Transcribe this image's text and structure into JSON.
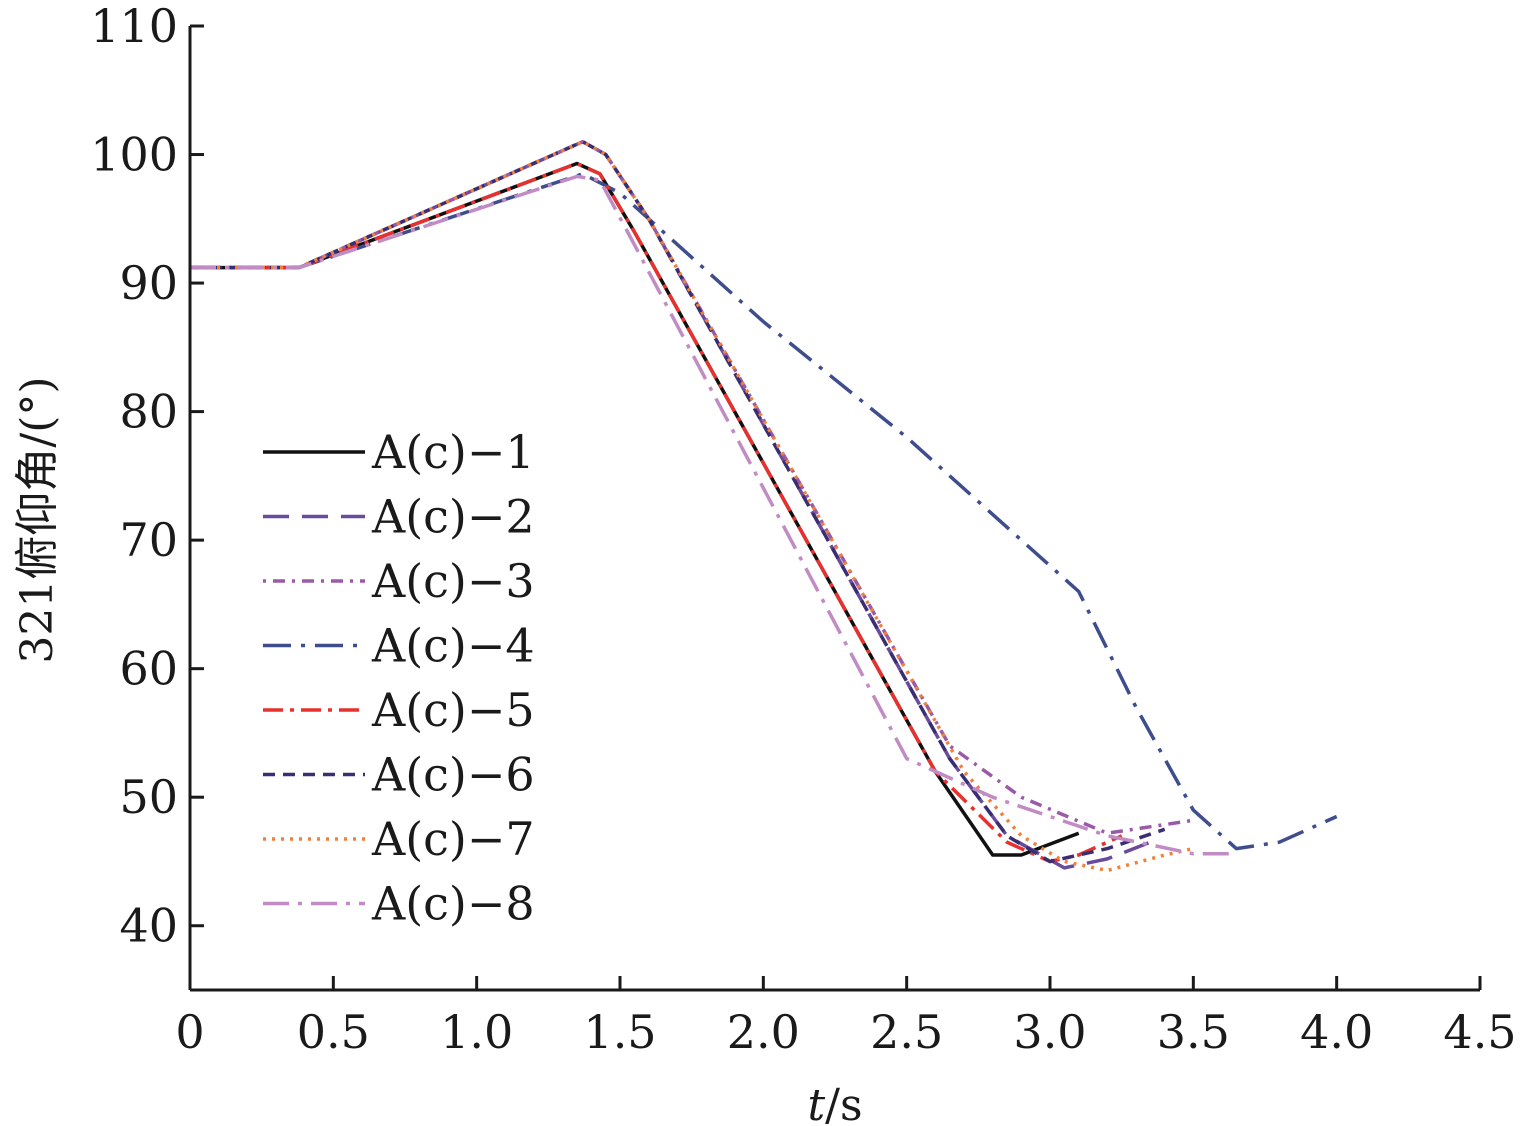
{
  "chart_data": {
    "type": "line",
    "xlabel_italic": "t",
    "xlabel_unit": "/s",
    "ylabel": "321俯仰角/(°)",
    "xlim": [
      0,
      4.5
    ],
    "ylim": [
      35,
      110
    ],
    "xticks": [
      0,
      0.5,
      1.0,
      1.5,
      2.0,
      2.5,
      3.0,
      3.5,
      4.0,
      4.5
    ],
    "xtick_labels": [
      "0",
      "0.5",
      "1.0",
      "1.5",
      "2.0",
      "2.5",
      "3.0",
      "3.5",
      "4.0",
      "4.5"
    ],
    "yticks": [
      40,
      50,
      60,
      70,
      80,
      90,
      100,
      110
    ],
    "ytick_labels": [
      "40",
      "50",
      "60",
      "70",
      "80",
      "90",
      "100",
      "110"
    ],
    "grid": false,
    "legend_position": "left",
    "series": [
      {
        "name": "A(c)−1",
        "color": "#111111",
        "dash": "",
        "x": [
          0,
          0.38,
          1.35,
          1.43,
          1.55,
          2.6,
          2.8,
          2.9,
          3.1
        ],
        "y": [
          91.2,
          91.2,
          99.3,
          98.5,
          94,
          52,
          45.5,
          45.5,
          47.2
        ]
      },
      {
        "name": "A(c)−2",
        "color": "#6a4a9c",
        "dash": "26,13",
        "x": [
          0,
          0.38,
          1.37,
          1.45,
          1.6,
          2.65,
          2.85,
          3.05,
          3.2,
          3.35
        ],
        "y": [
          91.2,
          91.2,
          101,
          100,
          95,
          53,
          47,
          44.5,
          45.2,
          46.5
        ]
      },
      {
        "name": "A(c)−3",
        "color": "#9a5aa8",
        "dash": "3,7,12,7",
        "x": [
          0,
          0.38,
          1.37,
          1.45,
          1.6,
          2.65,
          2.9,
          3.2,
          3.5
        ],
        "y": [
          91.2,
          91.2,
          101,
          100,
          95,
          54,
          50,
          47.2,
          48.2
        ]
      },
      {
        "name": "A(c)−4",
        "color": "#3e4d8e",
        "dash": "28,10,4,10",
        "x": [
          0,
          0.38,
          1.37,
          1.5,
          2.0,
          2.5,
          2.9,
          3.1,
          3.3,
          3.5,
          3.65,
          3.8,
          4.0
        ],
        "y": [
          91.2,
          91.2,
          98.5,
          97,
          87,
          78,
          70,
          66,
          57,
          49,
          46,
          46.5,
          48.5
        ]
      },
      {
        "name": "A(c)−5",
        "color": "#e8312f",
        "dash": "20,7,4,7",
        "x": [
          0,
          0.38,
          1.35,
          1.43,
          1.55,
          2.6,
          2.85,
          3.0,
          3.1,
          3.25
        ],
        "y": [
          91.2,
          91.2,
          99.3,
          98.5,
          94,
          52,
          46.5,
          45,
          45.5,
          47
        ]
      },
      {
        "name": "A(c)−6",
        "color": "#3a2e72",
        "dash": "12,8",
        "x": [
          0,
          0.38,
          1.37,
          1.45,
          1.6,
          2.65,
          2.85,
          3.0,
          3.2,
          3.4
        ],
        "y": [
          91.2,
          91.2,
          101,
          100,
          95,
          53,
          47,
          45,
          46,
          47.5
        ]
      },
      {
        "name": "A(c)−7",
        "color": "#f0813a",
        "dash": "3,6",
        "x": [
          0,
          0.38,
          1.37,
          1.45,
          1.6,
          2.7,
          2.9,
          3.05,
          3.2,
          3.4,
          3.5
        ],
        "y": [
          91.2,
          91.2,
          101,
          100,
          95,
          52,
          47,
          45,
          44.3,
          45.5,
          46
        ]
      },
      {
        "name": "A(c)−8",
        "color": "#c18cc4",
        "dash": "26,9,4,9",
        "x": [
          0,
          0.38,
          1.35,
          1.43,
          1.55,
          2.5,
          2.8,
          3.2,
          3.5,
          3.65
        ],
        "y": [
          91.2,
          91.2,
          98.3,
          98.0,
          93,
          53,
          50,
          47,
          45.6,
          45.6
        ]
      }
    ]
  }
}
